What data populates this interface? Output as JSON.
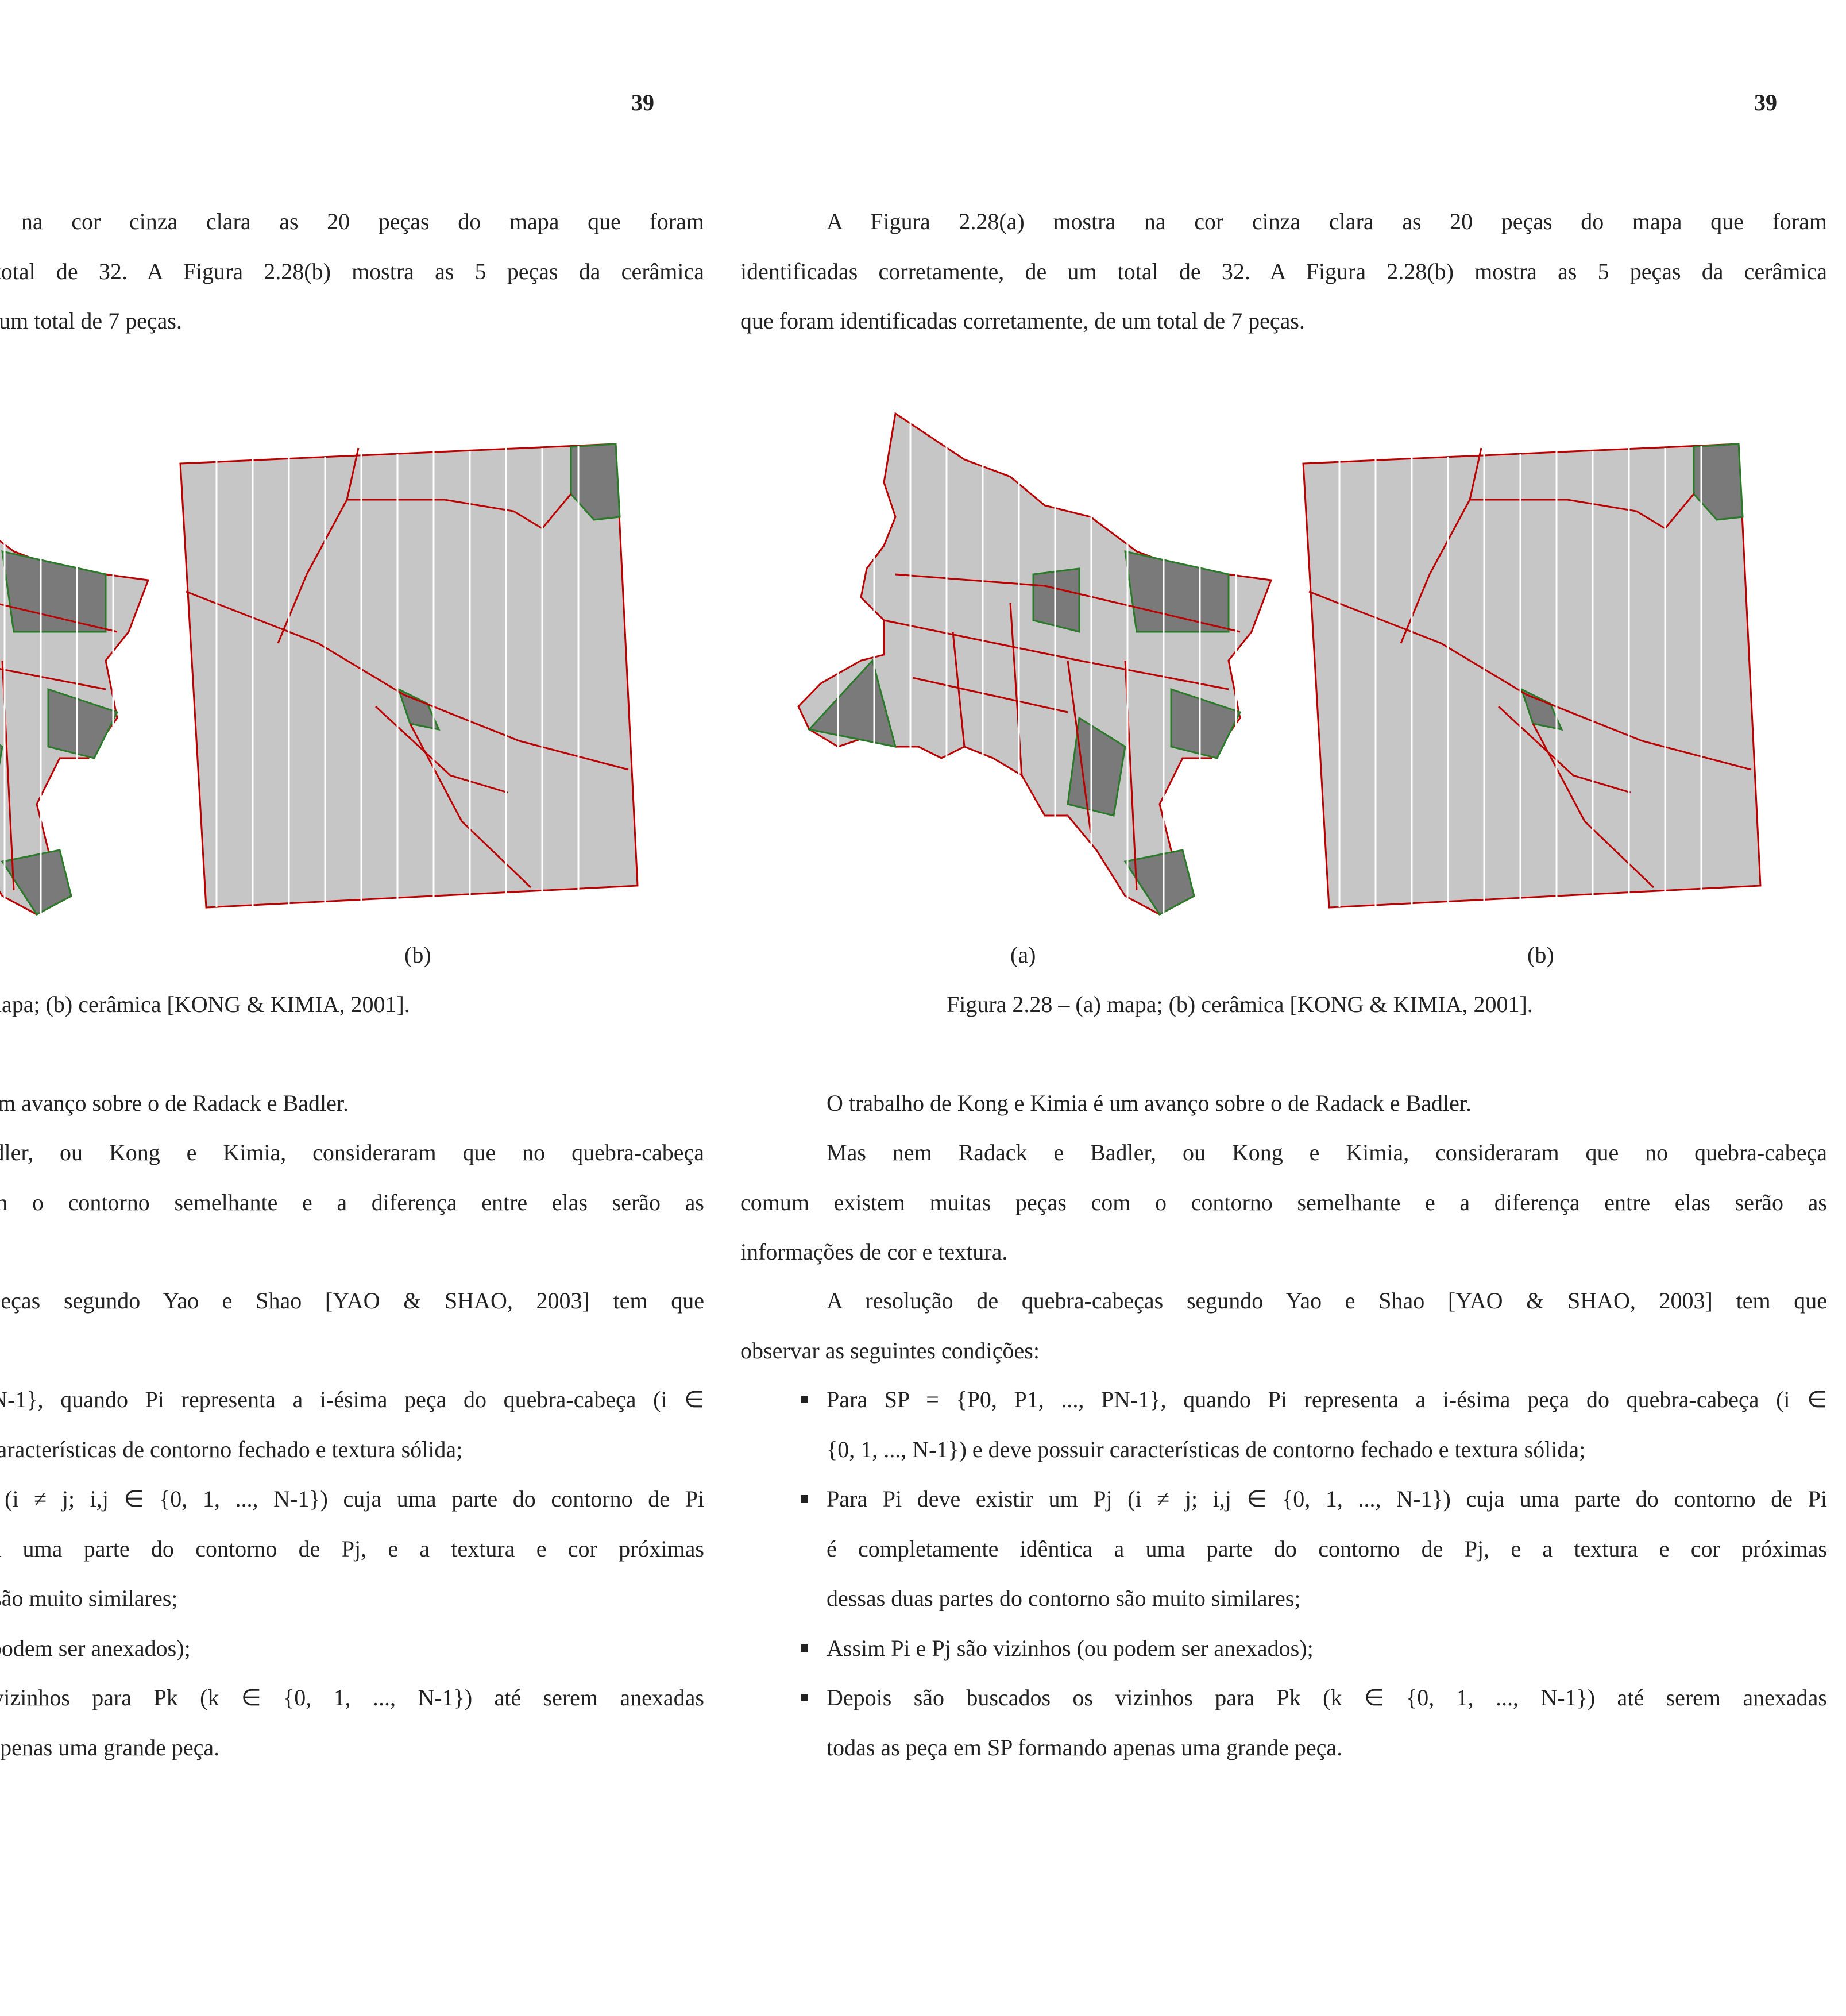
{
  "page_number": "39",
  "paragraph_1": [
    "A Figura 2.28(a) mostra na cor cinza clara as 20 peças do mapa que foram",
    "identificadas corretamente, de um total de 32. A Figura 2.28(b) mostra as 5 peças da cerâmica",
    "que foram identificadas corretamente, de um total de 7 peças."
  ],
  "figure": {
    "label_a": "(a)",
    "label_b": "(b)",
    "caption": "Figura 2.28 – (a) mapa; (b) cerâmica [KONG & KIMIA, 2001]."
  },
  "paragraph_2": [
    "O trabalho de Kong e Kimia é um avanço sobre o de Radack e Badler."
  ],
  "paragraph_3": [
    "Mas nem Radack e Badler, ou Kong e Kimia, consideraram que no quebra-cabeça",
    "comum existem muitas peças com o contorno semelhante e a diferença entre elas serão as",
    "informações de cor e textura."
  ],
  "paragraph_4": [
    "A resolução de quebra-cabeças segundo Yao e Shao [YAO & SHAO, 2003] tem que",
    "observar as seguintes condições:"
  ],
  "bullets": [
    [
      "Para SP = {P0, P1, ..., PN-1}, quando Pi representa a i-ésima peça do quebra-cabeça (i ∈",
      "{0, 1, ..., N-1}) e deve possuir características de contorno fechado e textura sólida;"
    ],
    [
      "Para Pi deve existir um Pj (i ≠ j; i,j ∈ {0, 1, ..., N-1}) cuja uma parte do contorno de Pi",
      "é completamente idêntica a uma parte do contorno de Pj, e a textura e cor próximas",
      "dessas duas partes do contorno são muito similares;"
    ],
    [
      "Assim Pi e Pj são vizinhos (ou podem ser anexados);"
    ],
    [
      "Depois são buscados os vizinhos para Pk (k ∈ {0, 1, ..., N-1}) até serem anexadas",
      "todas as peça em SP formando apenas uma grande peça."
    ]
  ]
}
